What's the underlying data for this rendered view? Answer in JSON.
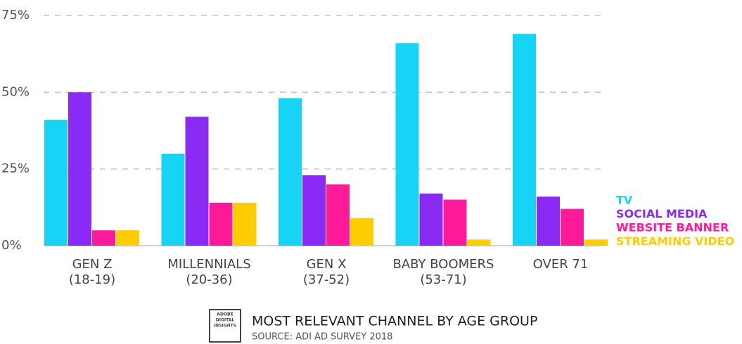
{
  "chart_data": {
    "type": "bar",
    "title": "MOST RELEVANT CHANNEL BY AGE GROUP",
    "subtitle": "SOURCE: ADI AD SURVEY 2018",
    "logo_text": [
      "ADOBE",
      "DIGITAL",
      "INSIGHTS"
    ],
    "categories": [
      [
        "GEN Z",
        "(18-19)"
      ],
      [
        "MILLENNIALS",
        "(20-36)"
      ],
      [
        "GEN X",
        "(37-52)"
      ],
      [
        "BABY BOOMERS",
        "(53-71)"
      ],
      [
        "OVER 71"
      ]
    ],
    "series": [
      {
        "name": "TV",
        "color": "#17d4f7",
        "values": [
          41,
          30,
          48,
          66,
          69
        ]
      },
      {
        "name": "SOCIAL MEDIA",
        "color": "#8a2bf5",
        "values": [
          50,
          42,
          23,
          17,
          16
        ]
      },
      {
        "name": "WEBSITE BANNER",
        "color": "#ff1a9a",
        "values": [
          5,
          14,
          20,
          15,
          12
        ]
      },
      {
        "name": "STREAMING VIDEO",
        "color": "#ffcc00",
        "values": [
          5,
          14,
          9,
          2,
          2
        ]
      }
    ],
    "ylim": [
      0,
      75
    ],
    "yticks": [
      {
        "value": 0,
        "label": "0%"
      },
      {
        "value": 25,
        "label": "25%"
      },
      {
        "value": 50,
        "label": "50%"
      },
      {
        "value": 75,
        "label": "75%"
      }
    ],
    "grid": true,
    "legend": "right"
  }
}
